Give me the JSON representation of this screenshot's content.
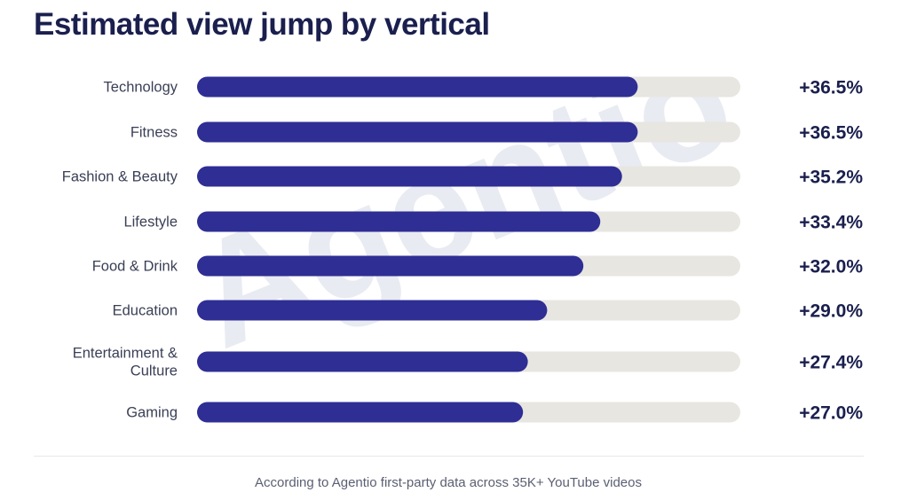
{
  "chart_data": {
    "type": "bar",
    "orientation": "horizontal",
    "title": "Estimated view jump by vertical",
    "categories": [
      "Technology",
      "Fitness",
      "Fashion & Beauty",
      "Lifestyle",
      "Food & Drink",
      "Education",
      "Entertainment & Culture",
      "Gaming"
    ],
    "category_lines": [
      [
        "Technology"
      ],
      [
        "Fitness"
      ],
      [
        "Fashion & Beauty"
      ],
      [
        "Lifestyle"
      ],
      [
        "Food & Drink"
      ],
      [
        "Education"
      ],
      [
        "Entertainment &",
        "Culture"
      ],
      [
        "Gaming"
      ]
    ],
    "values": [
      36.5,
      36.5,
      35.2,
      33.4,
      32.0,
      29.0,
      27.4,
      27.0
    ],
    "value_labels": [
      "+36.5%",
      "+36.5%",
      "+35.2%",
      "+33.4%",
      "+32.0%",
      "+29.0%",
      "+27.4%",
      "+27.0%"
    ],
    "xlim": [
      0,
      45
    ],
    "grid": false,
    "legend": "none",
    "bar_color": "#2e2e94",
    "track_color": "#e8e6e1",
    "label_color": "#3a3f55",
    "value_color": "#1a1f4e"
  },
  "watermark": "Agentio",
  "footnote": "According to Agentio first-party data across 35K+ YouTube videos"
}
